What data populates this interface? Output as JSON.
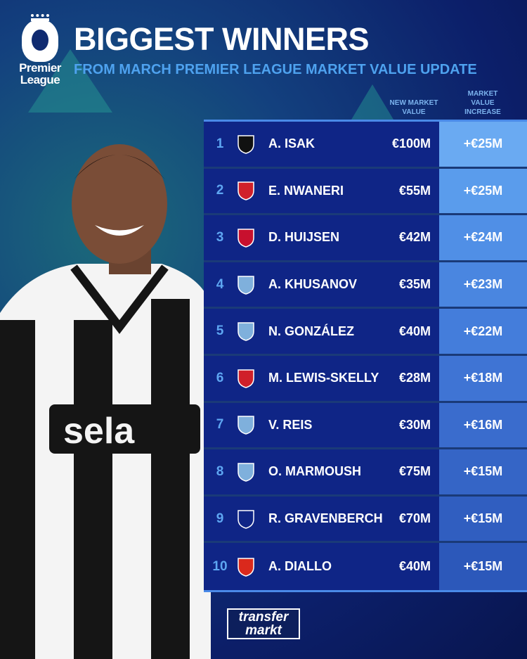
{
  "header": {
    "logo_text_line1": "Premier",
    "logo_text_line2": "League",
    "title": "BIGGEST WINNERS",
    "subtitle": "FROM MARCH PREMIER LEAGUE MARKET VALUE UPDATE"
  },
  "columns": {
    "new_value": "NEW MARKET VALUE",
    "increase": "MARKET VALUE INCREASE"
  },
  "rows": [
    {
      "rank": "1",
      "crest_icon": "newcastle-crest",
      "crest_color": "#111111",
      "name": "A. ISAK",
      "value": "€100M",
      "increase": "+€25M",
      "inc_color": "#6aaaf2"
    },
    {
      "rank": "2",
      "crest_icon": "arsenal-crest",
      "crest_color": "#d0202a",
      "name": "E. NWANERI",
      "value": "€55M",
      "increase": "+€25M",
      "inc_color": "#5a9cec"
    },
    {
      "rank": "3",
      "crest_icon": "bournemouth-crest",
      "crest_color": "#c8102e",
      "name": "D. HUIJSEN",
      "value": "€42M",
      "increase": "+€24M",
      "inc_color": "#508fe6"
    },
    {
      "rank": "4",
      "crest_icon": "man-city-crest",
      "crest_color": "#7fb0dc",
      "name": "A. KHUSANOV",
      "value": "€35M",
      "increase": "+€23M",
      "inc_color": "#4a86e0"
    },
    {
      "rank": "5",
      "crest_icon": "man-city-crest",
      "crest_color": "#7fb0dc",
      "name": "N. GONZÁLEZ",
      "value": "€40M",
      "increase": "+€22M",
      "inc_color": "#447ddb"
    },
    {
      "rank": "6",
      "crest_icon": "arsenal-crest",
      "crest_color": "#d0202a",
      "name": "M. LEWIS-SKELLY",
      "value": "€28M",
      "increase": "+€18M",
      "inc_color": "#3f74d4"
    },
    {
      "rank": "7",
      "crest_icon": "man-city-crest",
      "crest_color": "#7fb0dc",
      "name": "V. REIS",
      "value": "€30M",
      "increase": "+€16M",
      "inc_color": "#3a6ccd"
    },
    {
      "rank": "8",
      "crest_icon": "man-city-crest",
      "crest_color": "#7fb0dc",
      "name": "O. MARMOUSH",
      "value": "€75M",
      "increase": "+€15M",
      "inc_color": "#3565c6"
    },
    {
      "rank": "9",
      "crest_icon": "liverpool-crest",
      "crest_color": "#0f2586",
      "name": "R. GRAVENBERCH",
      "value": "€70M",
      "increase": "+€15M",
      "inc_color": "#305ec0"
    },
    {
      "rank": "10",
      "crest_icon": "man-united-crest",
      "crest_color": "#da291c",
      "name": "A. DIALLO",
      "value": "€40M",
      "increase": "+€15M",
      "inc_color": "#2c58ba"
    }
  ],
  "footer": {
    "brand_line1": "transfer",
    "brand_line2": "markt"
  }
}
